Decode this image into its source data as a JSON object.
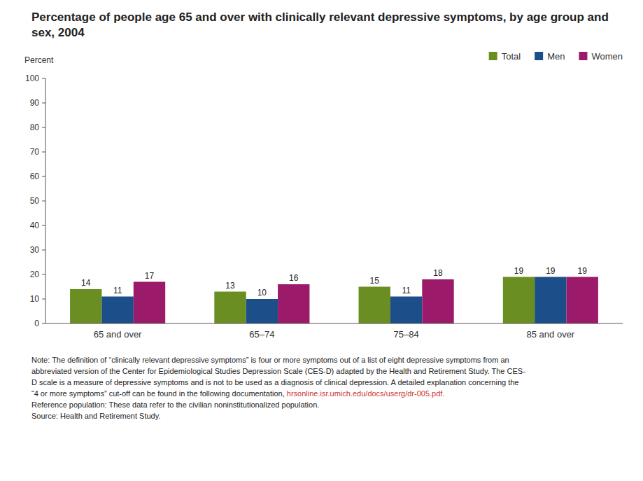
{
  "chart_data": {
    "type": "bar",
    "title": "Percentage of people age 65 and over with clinically relevant depressive symptoms, by age group and sex, 2004",
    "ylabel": "Percent",
    "categories": [
      "65 and over",
      "65–74",
      "75–84",
      "85 and over"
    ],
    "series": [
      {
        "name": "Total",
        "color": "#6b8e23",
        "values": [
          14,
          13,
          15,
          19
        ]
      },
      {
        "name": "Men",
        "color": "#1c4f8a",
        "values": [
          11,
          10,
          11,
          19
        ]
      },
      {
        "name": "Women",
        "color": "#9b1b6a",
        "values": [
          17,
          16,
          18,
          19
        ]
      }
    ],
    "ylim": [
      0,
      100
    ],
    "yticks": [
      0,
      10,
      20,
      30,
      40,
      50,
      60,
      70,
      80,
      90,
      100
    ],
    "grid": false,
    "legend": "upper right",
    "data_labels": true,
    "annotations": [
      "Note: The definition of “clinically relevant depressive symptoms” is four or more symptoms out of a list of eight depressive symptoms from an",
      "abbreviated version of the Center for Epidemiological Studies Depression Scale (CES-D) adapted by the Health and Retirement Study. The CES-",
      "D scale is a measure of depressive symptoms and is not to be used as a diagnosis of clinical depression. A detailed explanation concerning the",
      "“4 or more symptoms” cut-off can be found in the following documentation,",
      "hrsonline.isr.umich.edu/docs/userg/dr-005.pdf.",
      "Reference population:  These data refer to the civilian noninstitutionalized population.",
      "Source: Health and Retirement Study."
    ]
  }
}
